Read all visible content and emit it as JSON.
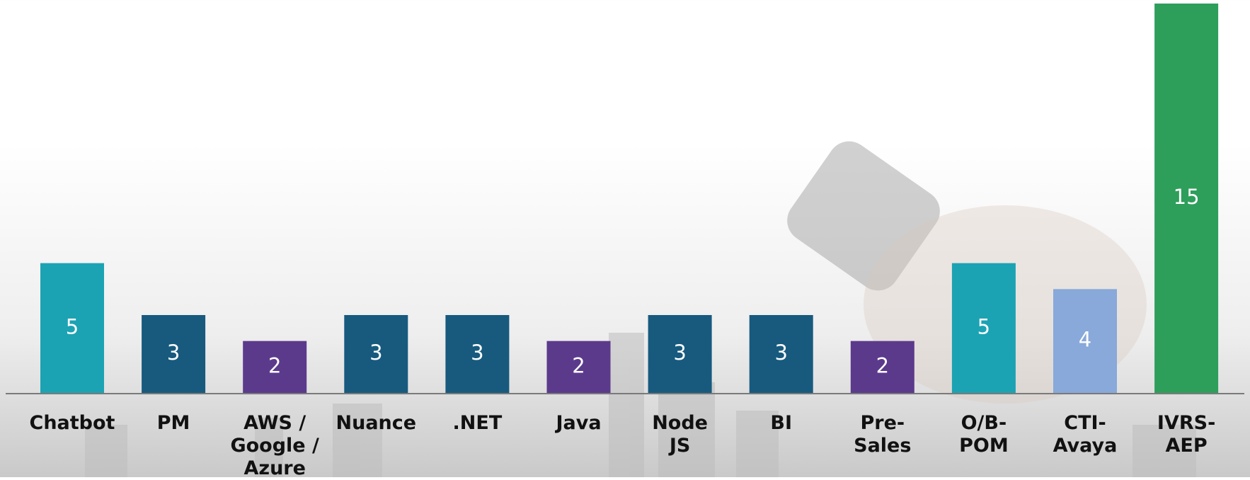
{
  "chart_data": {
    "type": "bar",
    "categories": [
      "Chatbot",
      "PM",
      "AWS /\nGoogle /\nAzure",
      "Nuance",
      ".NET",
      "Java",
      "Node\nJS",
      "BI",
      "Pre-Sales",
      "O/B-\nPOM",
      "CTI-\nAvaya",
      "IVRS-\nAEP"
    ],
    "values": [
      5,
      3,
      2,
      3,
      3,
      2,
      3,
      3,
      2,
      5,
      4,
      15
    ],
    "colors": [
      "#1ba3b3",
      "#175a7e",
      "#5b3a8c",
      "#175a7e",
      "#175a7e",
      "#5b3a8c",
      "#175a7e",
      "#175a7e",
      "#5b3a8c",
      "#1ba3b3",
      "#88a9d9",
      "#2e9e5b"
    ],
    "ylim": [
      0,
      15
    ]
  }
}
